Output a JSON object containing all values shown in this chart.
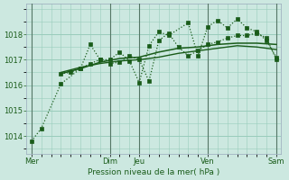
{
  "background_color": "#cce8e0",
  "grid_color": "#99ccbb",
  "line_color": "#1a5c1a",
  "xlabel": "Pression niveau de la mer( hPa )",
  "ylim": [
    1013.3,
    1019.2
  ],
  "yticks": [
    1014,
    1015,
    1016,
    1017,
    1018
  ],
  "day_labels": [
    "Mer",
    "",
    "Dim",
    "Jeu",
    "",
    "Ven",
    "",
    "Sam"
  ],
  "day_x": [
    0,
    4,
    8,
    11,
    14,
    18,
    22,
    25
  ],
  "vline_x": [
    0,
    8,
    11,
    18,
    25
  ],
  "n_points": 26,
  "line1_x": [
    0,
    1,
    3,
    5,
    6,
    7,
    8,
    9,
    10,
    11,
    12,
    13,
    14,
    16,
    17,
    18,
    19,
    20,
    21,
    22,
    23,
    24,
    25
  ],
  "line1_y": [
    1013.8,
    1014.3,
    1016.05,
    1016.65,
    1016.85,
    1017.0,
    1017.0,
    1017.3,
    1016.95,
    1016.1,
    1017.55,
    1018.1,
    1017.95,
    1018.45,
    1017.15,
    1018.3,
    1018.55,
    1018.25,
    1018.6,
    1018.25,
    1018.1,
    1017.75,
    1017.1
  ],
  "line2_x": [
    3,
    4,
    5,
    6,
    7,
    8,
    9,
    10,
    11,
    12,
    13,
    14,
    15,
    16,
    17,
    18,
    19,
    20,
    21,
    22,
    23,
    24,
    25
  ],
  "line2_y": [
    1016.45,
    1016.5,
    1016.65,
    1017.6,
    1017.0,
    1016.85,
    1016.9,
    1017.15,
    1017.0,
    1016.15,
    1017.75,
    1018.05,
    1017.5,
    1017.15,
    1017.35,
    1017.6,
    1017.7,
    1017.85,
    1017.95,
    1017.95,
    1018.05,
    1017.85,
    1017.0
  ],
  "line3_x": [
    3,
    5,
    7,
    9,
    11,
    13,
    15,
    17,
    19,
    21,
    23,
    25
  ],
  "line3_y": [
    1016.45,
    1016.65,
    1016.9,
    1017.05,
    1017.1,
    1017.3,
    1017.45,
    1017.5,
    1017.6,
    1017.65,
    1017.65,
    1017.6
  ],
  "line4_x": [
    3,
    5,
    7,
    9,
    11,
    13,
    15,
    17,
    19,
    21,
    23,
    25
  ],
  "line4_y": [
    1016.5,
    1016.7,
    1016.85,
    1016.95,
    1017.0,
    1017.1,
    1017.25,
    1017.35,
    1017.45,
    1017.55,
    1017.5,
    1017.4
  ]
}
